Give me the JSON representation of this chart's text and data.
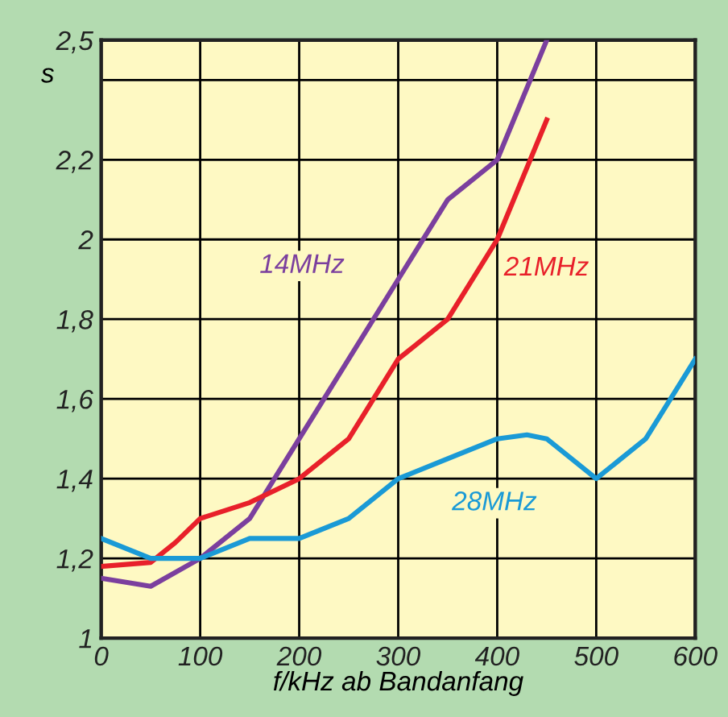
{
  "chart_data": {
    "type": "line",
    "xlabel": "f/kHz ab Bandanfang",
    "ylabel": "s",
    "xlim": [
      0,
      600
    ],
    "xticks": [
      0,
      100,
      200,
      300,
      400,
      500,
      600
    ],
    "ylim": [
      1,
      2.5
    ],
    "yticks": [
      1,
      {
        "value": 1.2,
        "label": "1,2"
      },
      {
        "value": 1.4,
        "label": "1,4"
      },
      {
        "value": 1.6,
        "label": "1,6"
      },
      {
        "value": 1.8,
        "label": "1,8"
      },
      2,
      {
        "value": 2.2,
        "label": "2,2"
      },
      {
        "value": 2.4,
        "label": null
      },
      {
        "value": 2.5,
        "label": "2,5"
      }
    ],
    "grid": true,
    "legend": false,
    "marker": "none",
    "line_style": "solid",
    "series": [
      {
        "name": "14MHz",
        "color": "#7b3f9e",
        "x": [
          0,
          50,
          100,
          150,
          200,
          250,
          300,
          350,
          400,
          450
        ],
        "values": [
          1.15,
          1.13,
          1.2,
          1.3,
          1.5,
          1.7,
          1.9,
          2.1,
          2.2,
          2.5
        ]
      },
      {
        "name": "21MHz",
        "color": "#e8202a",
        "x": [
          0,
          50,
          75,
          100,
          150,
          200,
          250,
          275,
          300,
          350,
          400,
          450
        ],
        "values": [
          1.18,
          1.19,
          1.24,
          1.3,
          1.34,
          1.4,
          1.5,
          1.6,
          1.7,
          1.8,
          2.0,
          2.3
        ]
      },
      {
        "name": "28MHz",
        "color": "#1a9ad6",
        "x": [
          0,
          50,
          100,
          150,
          200,
          250,
          300,
          350,
          400,
          430,
          450,
          500,
          550,
          600
        ],
        "values": [
          1.25,
          1.2,
          1.2,
          1.25,
          1.25,
          1.3,
          1.4,
          1.45,
          1.5,
          1.51,
          1.5,
          1.4,
          1.5,
          1.7
        ]
      }
    ]
  }
}
